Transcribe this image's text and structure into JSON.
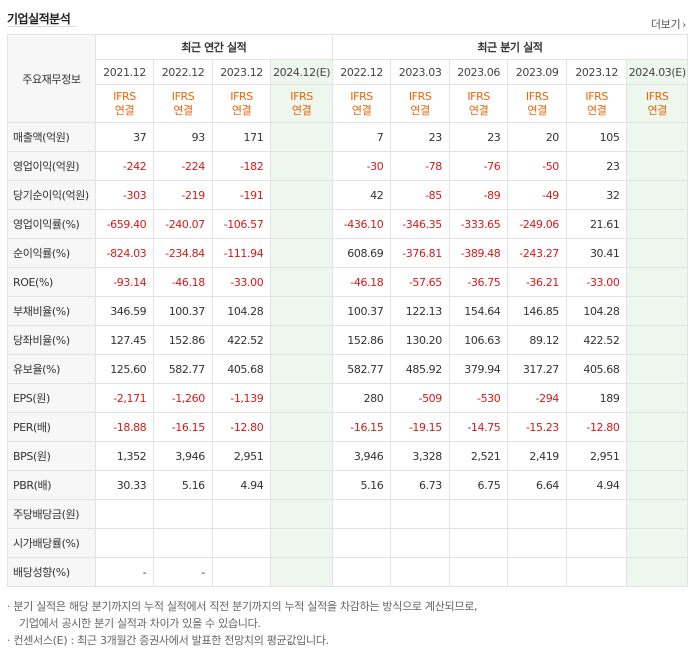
{
  "header": {
    "title": "기업실적분석",
    "more_label": "더보기",
    "more_icon": "chevron-right-icon"
  },
  "table": {
    "corner_label": "주요재무정보",
    "group_annual": "최근 연간 실적",
    "group_quarter": "최근 분기 실적",
    "periods": [
      {
        "label": "2021.12",
        "estimate": false
      },
      {
        "label": "2022.12",
        "estimate": false
      },
      {
        "label": "2023.12",
        "estimate": false
      },
      {
        "label": "2024.12(E)",
        "estimate": true
      },
      {
        "label": "2022.12",
        "estimate": false
      },
      {
        "label": "2023.03",
        "estimate": false
      },
      {
        "label": "2023.06",
        "estimate": false
      },
      {
        "label": "2023.09",
        "estimate": false
      },
      {
        "label": "2023.12",
        "estimate": false
      },
      {
        "label": "2024.03(E)",
        "estimate": true
      }
    ],
    "ifrs_line1": "IFRS",
    "ifrs_line2": "연결",
    "rows": [
      {
        "label": "매출액(억원)",
        "values": [
          "37",
          "93",
          "171",
          "",
          "7",
          "23",
          "23",
          "20",
          "105",
          ""
        ]
      },
      {
        "label": "영업이익(억원)",
        "values": [
          "-242",
          "-224",
          "-182",
          "",
          "-30",
          "-78",
          "-76",
          "-50",
          "23",
          ""
        ]
      },
      {
        "label": "당기순이익(억원)",
        "values": [
          "-303",
          "-219",
          "-191",
          "",
          "42",
          "-85",
          "-89",
          "-49",
          "32",
          ""
        ]
      },
      {
        "label": "영업이익률(%)",
        "values": [
          "-659.40",
          "-240.07",
          "-106.57",
          "",
          "-436.10",
          "-346.35",
          "-333.65",
          "-249.06",
          "21.61",
          ""
        ]
      },
      {
        "label": "순이익률(%)",
        "values": [
          "-824.03",
          "-234.84",
          "-111.94",
          "",
          "608.69",
          "-376.81",
          "-389.48",
          "-243.27",
          "30.41",
          ""
        ]
      },
      {
        "label": "ROE(%)",
        "values": [
          "-93.14",
          "-46.18",
          "-33.00",
          "",
          "-46.18",
          "-57.65",
          "-36.75",
          "-36.21",
          "-33.00",
          ""
        ]
      },
      {
        "label": "부채비율(%)",
        "values": [
          "346.59",
          "100.37",
          "104.28",
          "",
          "100.37",
          "122.13",
          "154.64",
          "146.85",
          "104.28",
          ""
        ]
      },
      {
        "label": "당좌비율(%)",
        "values": [
          "127.45",
          "152.86",
          "422.52",
          "",
          "152.86",
          "130.20",
          "106.63",
          "89.12",
          "422.52",
          ""
        ]
      },
      {
        "label": "유보율(%)",
        "values": [
          "125.60",
          "582.77",
          "405.68",
          "",
          "582.77",
          "485.92",
          "379.94",
          "317.27",
          "405.68",
          ""
        ]
      },
      {
        "label": "EPS(원)",
        "values": [
          "-2,171",
          "-1,260",
          "-1,139",
          "",
          "280",
          "-509",
          "-530",
          "-294",
          "189",
          ""
        ]
      },
      {
        "label": "PER(배)",
        "values": [
          "-18.88",
          "-16.15",
          "-12.80",
          "",
          "-16.15",
          "-19.15",
          "-14.75",
          "-15.23",
          "-12.80",
          ""
        ]
      },
      {
        "label": "BPS(원)",
        "values": [
          "1,352",
          "3,946",
          "2,951",
          "",
          "3,946",
          "3,328",
          "2,521",
          "2,419",
          "2,951",
          ""
        ]
      },
      {
        "label": "PBR(배)",
        "values": [
          "30.33",
          "5.16",
          "4.94",
          "",
          "5.16",
          "6.73",
          "6.75",
          "6.64",
          "4.94",
          ""
        ]
      },
      {
        "label": "주당배당금(원)",
        "values": [
          "",
          "",
          "",
          "",
          "",
          "",
          "",
          "",
          "",
          ""
        ]
      },
      {
        "label": "시가배당률(%)",
        "values": [
          "",
          "",
          "",
          "",
          "",
          "",
          "",
          "",
          "",
          ""
        ]
      },
      {
        "label": "배당성향(%)",
        "values": [
          "-",
          "-",
          "",
          "",
          "",
          "",
          "",
          "",
          "",
          ""
        ]
      }
    ],
    "section_breaks_before": [
      3,
      9,
      13
    ]
  },
  "notes": {
    "line1": "· 분기 실적은 해당 분기까지의 누적 실적에서 직전 분기까지의 누적 실적을 차감하는 방식으로 계산되므로,",
    "line2": "기업에서 공시한 분기 실적과 차이가 있을 수 있습니다.",
    "line3": "· 컨센서스(E) : 최근 3개월간 증권사에서 발표한 전망치의 평균값입니다."
  },
  "colors": {
    "negative": "#d61a1a",
    "ifrs": "#e8650a",
    "estimate_bg": "#eef7ee"
  }
}
